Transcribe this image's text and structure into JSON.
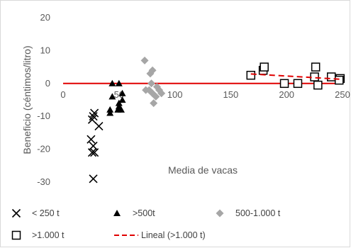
{
  "chart_data": {
    "type": "scatter",
    "title": "",
    "xlabel": "Media de vacas",
    "ylabel": "Beneficio (céntimos/litro)",
    "xlim": [
      0,
      250
    ],
    "ylim": [
      -30,
      20
    ],
    "xticks": [
      "0",
      "50",
      "100",
      "150",
      "200",
      "250"
    ],
    "yticks": [
      "20",
      "10",
      "0",
      "-10",
      "-20",
      "-30"
    ],
    "grid": false,
    "legend_position": "bottom",
    "zero_line_color": "#e00000",
    "series": [
      {
        "name": "< 250 t",
        "marker": "x",
        "color": "#000000",
        "points": [
          [
            28,
            -9
          ],
          [
            27,
            -10
          ],
          [
            26,
            -11
          ],
          [
            32,
            -13
          ],
          [
            25,
            -17
          ],
          [
            27,
            -19
          ],
          [
            28,
            -21
          ],
          [
            26,
            -21
          ],
          [
            27,
            -29
          ]
        ]
      },
      {
        "name": ">500t",
        "marker": "triangle",
        "color": "#000000",
        "points": [
          [
            44,
            0
          ],
          [
            50,
            0
          ],
          [
            44,
            -4
          ],
          [
            53,
            -3
          ],
          [
            53,
            -5
          ],
          [
            50,
            -6
          ],
          [
            50,
            -7
          ],
          [
            49,
            -8
          ],
          [
            52,
            -8
          ],
          [
            42,
            -8
          ],
          [
            42,
            -9
          ]
        ]
      },
      {
        "name": "500-1.000 t",
        "marker": "diamond",
        "color": "#a6a6a6",
        "points": [
          [
            73,
            7
          ],
          [
            78,
            3
          ],
          [
            80,
            4
          ],
          [
            79,
            0
          ],
          [
            84,
            -1
          ],
          [
            77,
            -2
          ],
          [
            74,
            -2
          ],
          [
            86,
            -2
          ],
          [
            80,
            -3
          ],
          [
            88,
            -3
          ],
          [
            83,
            -4
          ],
          [
            81,
            -6
          ]
        ]
      },
      {
        "name": ">1.000 t",
        "marker": "square",
        "color": "#000000",
        "points": [
          [
            168,
            2.5
          ],
          [
            179,
            4
          ],
          [
            180,
            5
          ],
          [
            198,
            0
          ],
          [
            210,
            0
          ],
          [
            225,
            2
          ],
          [
            226,
            5
          ],
          [
            228,
            -0.5
          ],
          [
            240,
            2
          ],
          [
            248,
            1.5
          ],
          [
            247,
            1
          ]
        ]
      },
      {
        "name": "Lineal (>1.000 t)",
        "marker": "dashed-line",
        "color": "#e00000",
        "points": [
          [
            168,
            2.9
          ],
          [
            248,
            1.3
          ]
        ]
      }
    ]
  }
}
